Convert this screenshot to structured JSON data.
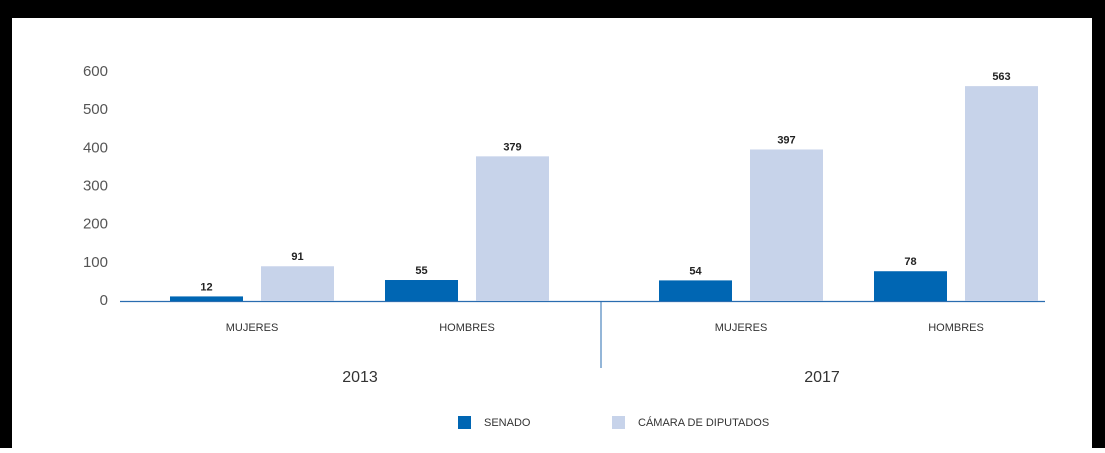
{
  "chart_data": {
    "type": "bar",
    "groups": [
      "2013",
      "2017"
    ],
    "categories": [
      "MUJERES",
      "HOMBRES",
      "MUJERES",
      "HOMBRES"
    ],
    "series": [
      {
        "name": "SENADO",
        "color": "#0066b3",
        "values": [
          12,
          55,
          54,
          78
        ]
      },
      {
        "name": "CÁMARA DE DIPUTADOS",
        "color": "#c7d3ea",
        "values": [
          91,
          379,
          397,
          563
        ]
      }
    ],
    "ylim": [
      0,
      600
    ],
    "yticks": [
      0,
      100,
      200,
      300,
      400,
      500,
      600
    ],
    "grid": false,
    "legend": "bottom"
  }
}
